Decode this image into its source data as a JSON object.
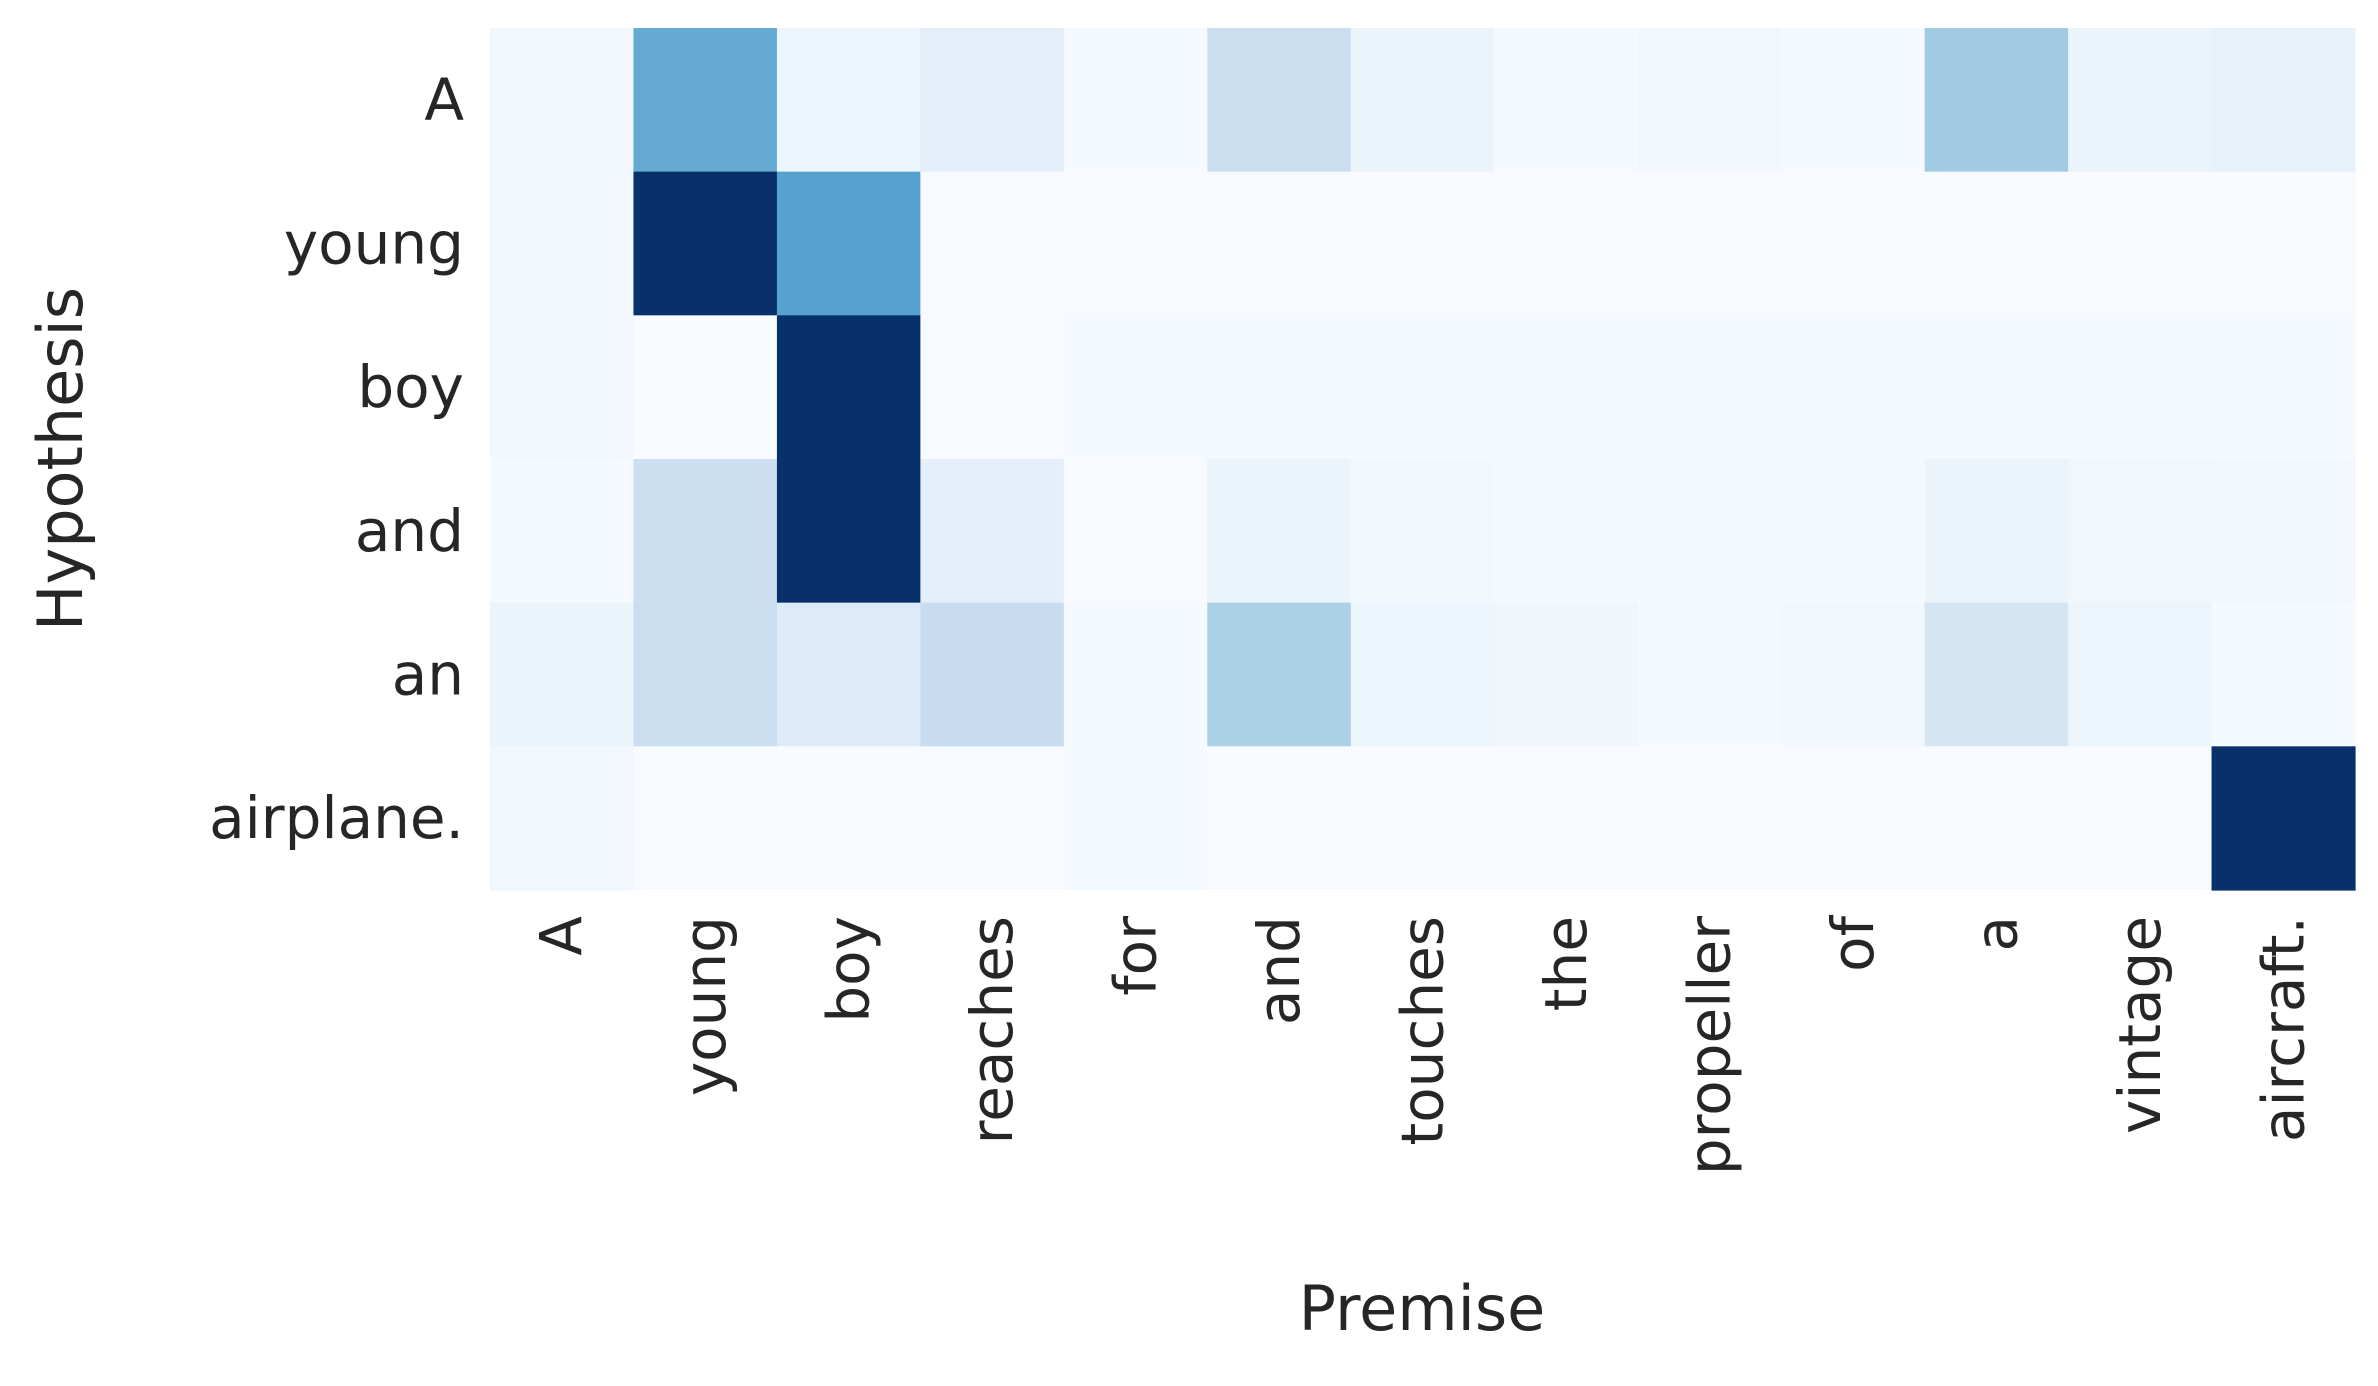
{
  "chart_data": {
    "type": "heatmap",
    "title": "",
    "xlabel": "Premise",
    "ylabel": "Hypothesis",
    "x_categories": [
      "A",
      "young",
      "boy",
      "reaches",
      "for",
      "and",
      "touches",
      "the",
      "propeller",
      "of",
      "a",
      "vintage",
      "aircraft."
    ],
    "y_categories": [
      "A",
      "young",
      "boy",
      "and",
      "an",
      "airplane."
    ],
    "values": [
      [
        0.03,
        0.52,
        0.05,
        0.1,
        0.01,
        0.23,
        0.06,
        0.01,
        0.03,
        0.01,
        0.37,
        0.06,
        0.08
      ],
      [
        0.02,
        1.0,
        0.56,
        0.0,
        0.0,
        0.0,
        0.0,
        0.0,
        0.0,
        0.0,
        0.0,
        0.0,
        0.0
      ],
      [
        0.02,
        0.0,
        1.0,
        0.0,
        0.01,
        0.01,
        0.01,
        0.01,
        0.01,
        0.01,
        0.01,
        0.01,
        0.01
      ],
      [
        0.01,
        0.22,
        1.0,
        0.09,
        0.0,
        0.06,
        0.02,
        0.01,
        0.01,
        0.01,
        0.06,
        0.03,
        0.02
      ],
      [
        0.06,
        0.23,
        0.13,
        0.24,
        0.01,
        0.33,
        0.05,
        0.04,
        0.01,
        0.02,
        0.17,
        0.05,
        0.01
      ],
      [
        0.03,
        0.0,
        0.0,
        0.0,
        0.01,
        0.0,
        0.0,
        0.0,
        0.0,
        0.0,
        0.0,
        0.0,
        1.0
      ]
    ],
    "colormap": "Blues",
    "color_range": [
      0,
      1
    ],
    "grid": false,
    "legend": "none",
    "colors": {
      "low": "#f7fbff",
      "high": "#08306b",
      "text": "#262626"
    }
  }
}
